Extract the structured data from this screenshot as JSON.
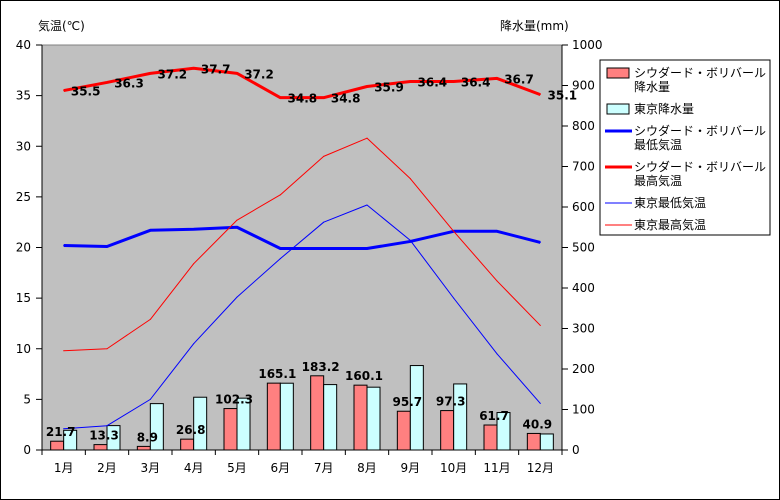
{
  "chart_data": {
    "type": "bar+line",
    "categories": [
      "1月",
      "2月",
      "3月",
      "4月",
      "5月",
      "6月",
      "7月",
      "8月",
      "9月",
      "10月",
      "11月",
      "12月"
    ],
    "y_left": {
      "label": "気温(℃)",
      "range": [
        0,
        40
      ],
      "ticks": [
        0,
        5,
        10,
        15,
        20,
        25,
        30,
        35,
        40
      ]
    },
    "y_right": {
      "label": "降水量(mm)",
      "range": [
        0,
        1000
      ],
      "ticks": [
        0,
        100,
        200,
        300,
        400,
        500,
        600,
        700,
        800,
        900,
        1000
      ]
    },
    "bar_series": [
      {
        "name": "シウダード・ボリバール降水量",
        "name_lines": [
          "シウダード・ボリバール",
          "降水量"
        ],
        "color": "#ff8080",
        "axis": "right",
        "values": [
          21.7,
          13.3,
          8.9,
          26.8,
          102.3,
          165.1,
          183.2,
          160.1,
          95.7,
          97.3,
          61.7,
          40.9
        ],
        "labels": [
          "21.7",
          "13.3",
          "8.9",
          "26.8",
          "102.3",
          "165.1",
          "183.2",
          "160.1",
          "95.7",
          "97.3",
          "61.7",
          "40.9"
        ]
      },
      {
        "name": "東京降水量",
        "name_lines": [
          "東京降水量"
        ],
        "color": "#ccffff",
        "axis": "right",
        "values": [
          48.6,
          60.2,
          114.5,
          130.3,
          128.0,
          164.9,
          161.5,
          155.1,
          208.5,
          163.1,
          92.5,
          39.6
        ]
      }
    ],
    "line_series": [
      {
        "name": "シウダード・ボリバール最低気温",
        "name_lines": [
          "シウダード・ボリバール",
          "最低気温"
        ],
        "color": "#0000ff",
        "width": 3,
        "axis": "left",
        "values": [
          20.2,
          20.1,
          21.7,
          21.8,
          22.0,
          19.9,
          19.9,
          19.9,
          20.6,
          21.6,
          21.6,
          20.5
        ]
      },
      {
        "name": "シウダード・ボリバール最高気温",
        "name_lines": [
          "シウダード・ボリバール",
          "最高気温"
        ],
        "color": "#ff0000",
        "width": 3,
        "axis": "left",
        "values": [
          35.5,
          36.3,
          37.2,
          37.7,
          37.2,
          34.8,
          34.8,
          35.9,
          36.4,
          36.4,
          36.7,
          35.1
        ],
        "labels": [
          "35.5",
          "36.3",
          "37.2",
          "37.7",
          "37.2",
          "34.8",
          "34.8",
          "35.9",
          "36.4",
          "36.4",
          "36.7",
          "35.1"
        ]
      },
      {
        "name": "東京最低気温",
        "name_lines": [
          "東京最低気温"
        ],
        "color": "#0000ff",
        "width": 1,
        "axis": "left",
        "values": [
          2.1,
          2.4,
          5.0,
          10.5,
          15.1,
          18.9,
          22.5,
          24.2,
          20.7,
          15.0,
          9.5,
          4.6
        ]
      },
      {
        "name": "東京最高気温",
        "name_lines": [
          "東京最高気温"
        ],
        "color": "#ff0000",
        "width": 1,
        "axis": "left",
        "values": [
          9.8,
          10.0,
          12.9,
          18.4,
          22.7,
          25.2,
          29.0,
          30.8,
          26.8,
          21.6,
          16.7,
          12.3
        ]
      }
    ]
  }
}
